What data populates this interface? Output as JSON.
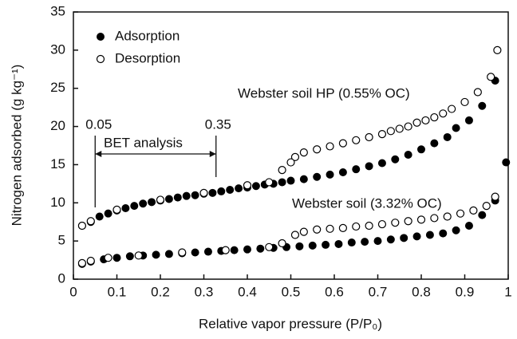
{
  "chart_data": {
    "type": "scatter",
    "xlabel": "Relative vapor pressure (P/P₀)",
    "ylabel": "Nitrogen adsorbed (g kg⁻¹)",
    "xlim": [
      0,
      1
    ],
    "ylim": [
      0,
      35
    ],
    "xticks": [
      0,
      0.1,
      0.2,
      0.3,
      0.4,
      0.5,
      0.6,
      0.7,
      0.8,
      0.9,
      1
    ],
    "yticks": [
      0,
      5,
      10,
      15,
      20,
      25,
      30,
      35
    ],
    "legend": "upper left",
    "series": [
      {
        "name": "Adsorption",
        "marker": "filled",
        "color": "#000000",
        "x": [
          0.02,
          0.04,
          0.06,
          0.08,
          0.1,
          0.12,
          0.14,
          0.16,
          0.18,
          0.2,
          0.22,
          0.24,
          0.26,
          0.28,
          0.3,
          0.32,
          0.34,
          0.36,
          0.38,
          0.4,
          0.42,
          0.44,
          0.46,
          0.48,
          0.5,
          0.53,
          0.56,
          0.59,
          0.62,
          0.65,
          0.68,
          0.71,
          0.74,
          0.77,
          0.8,
          0.83,
          0.86,
          0.88,
          0.91,
          0.94,
          0.97,
          0.995,
          0.02,
          0.04,
          0.07,
          0.1,
          0.13,
          0.16,
          0.19,
          0.22,
          0.25,
          0.28,
          0.31,
          0.34,
          0.37,
          0.4,
          0.43,
          0.46,
          0.49,
          0.52,
          0.55,
          0.58,
          0.61,
          0.64,
          0.67,
          0.7,
          0.73,
          0.76,
          0.79,
          0.82,
          0.85,
          0.88,
          0.91,
          0.94,
          0.97
        ],
        "values": [
          7.0,
          7.5,
          8.2,
          8.6,
          9.0,
          9.3,
          9.6,
          9.9,
          10.1,
          10.3,
          10.5,
          10.7,
          10.9,
          11.0,
          11.2,
          11.3,
          11.5,
          11.7,
          11.9,
          12.0,
          12.2,
          12.4,
          12.5,
          12.7,
          12.9,
          13.1,
          13.4,
          13.7,
          14.0,
          14.4,
          14.8,
          15.2,
          15.7,
          16.3,
          17.0,
          17.8,
          18.6,
          19.8,
          20.8,
          22.7,
          26.0,
          15.3,
          2.0,
          2.3,
          2.6,
          2.8,
          3.0,
          3.1,
          3.2,
          3.3,
          3.4,
          3.5,
          3.6,
          3.7,
          3.8,
          3.9,
          4.0,
          4.1,
          4.2,
          4.3,
          4.4,
          4.5,
          4.6,
          4.8,
          4.9,
          5.0,
          5.2,
          5.4,
          5.6,
          5.8,
          6.0,
          6.4,
          7.0,
          8.4,
          10.3
        ]
      },
      {
        "name": "Desorption",
        "marker": "open",
        "color": "#000000",
        "x": [
          0.975,
          0.96,
          0.93,
          0.9,
          0.87,
          0.85,
          0.83,
          0.81,
          0.79,
          0.77,
          0.75,
          0.73,
          0.71,
          0.68,
          0.65,
          0.62,
          0.59,
          0.56,
          0.53,
          0.51,
          0.5,
          0.48,
          0.45,
          0.4,
          0.3,
          0.2,
          0.1,
          0.04,
          0.02,
          0.97,
          0.95,
          0.92,
          0.89,
          0.86,
          0.83,
          0.8,
          0.77,
          0.74,
          0.71,
          0.68,
          0.65,
          0.62,
          0.59,
          0.56,
          0.53,
          0.51,
          0.48,
          0.45,
          0.35,
          0.25,
          0.15,
          0.08,
          0.04,
          0.02
        ],
        "values": [
          30.0,
          26.5,
          24.5,
          23.2,
          22.3,
          21.7,
          21.2,
          20.8,
          20.5,
          20.0,
          19.7,
          19.4,
          19.0,
          18.6,
          18.2,
          17.8,
          17.4,
          17.0,
          16.6,
          16.0,
          15.3,
          14.3,
          12.7,
          12.3,
          11.3,
          10.4,
          9.1,
          7.6,
          7.0,
          10.8,
          9.6,
          9.0,
          8.6,
          8.2,
          8.0,
          7.8,
          7.6,
          7.4,
          7.2,
          7.0,
          6.9,
          6.7,
          6.6,
          6.5,
          6.2,
          5.8,
          4.7,
          4.2,
          3.8,
          3.5,
          3.1,
          2.8,
          2.4,
          2.1
        ]
      }
    ],
    "annotations": [
      "Webster soil HP (0.55% OC)",
      "Webster soil (3.32% OC)",
      "BET analysis"
    ],
    "bet_range": [
      0.05,
      0.35
    ]
  }
}
